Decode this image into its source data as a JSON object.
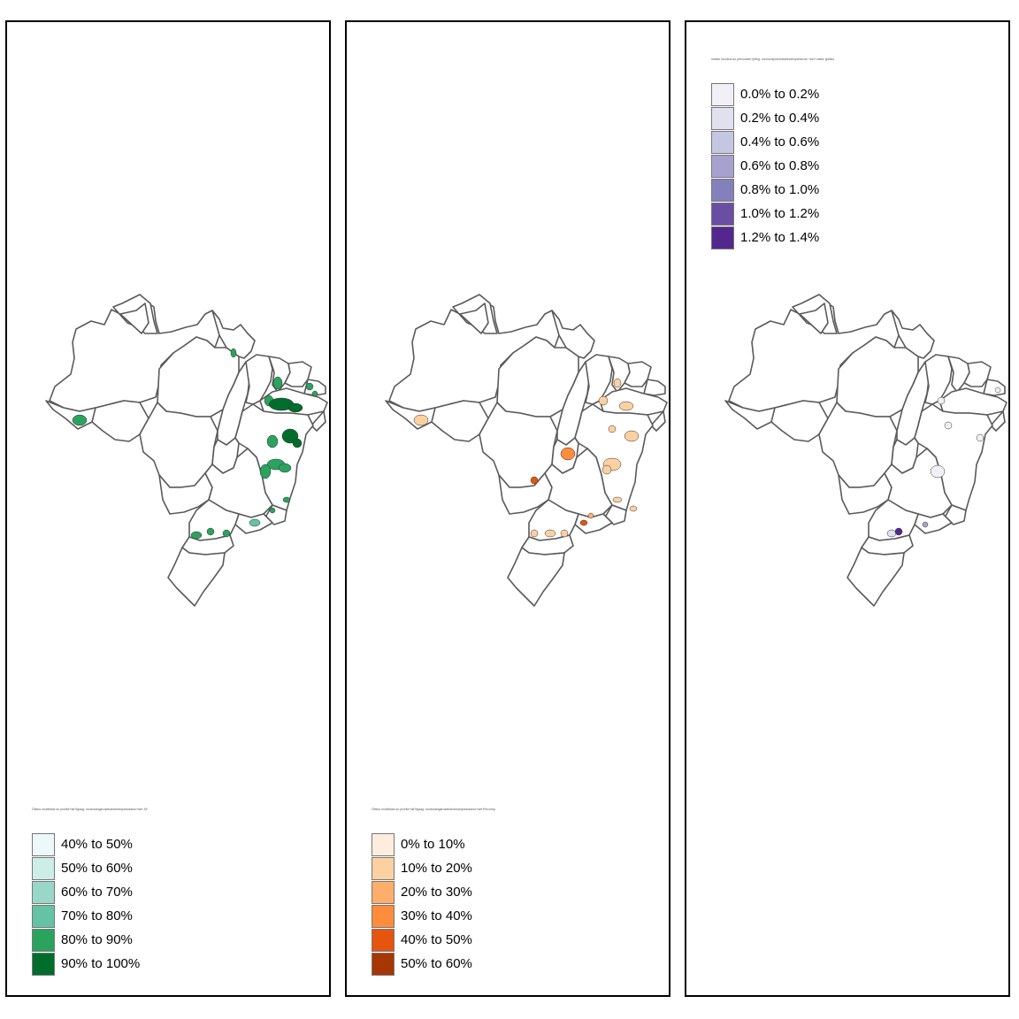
{
  "panels": [
    {
      "legend_title": "Óbitos mortfetais do pixelbr+lat?fgaag. mortosbrigarosebahderastpresclaros+lat+ AF",
      "legend": [
        {
          "label": "40% to 50%",
          "color": "#edf8fb"
        },
        {
          "label": "50% to 60%",
          "color": "#cceee6"
        },
        {
          "label": "60% to 70%",
          "color": "#99d8c9"
        },
        {
          "label": "70% to 80%",
          "color": "#66c2a4"
        },
        {
          "label": "80% to 90%",
          "color": "#2ca25f"
        },
        {
          "label": "90% to 100%",
          "color": "#006d2c"
        }
      ]
    },
    {
      "legend_title": "Óbitos mortfetais do pixelbr+lat?fgaag. mortosbrigarosebahderastpresclaros+lat+Precomp",
      "legend": [
        {
          "label": "0% to 10%",
          "color": "#feedde"
        },
        {
          "label": "10% to 20%",
          "color": "#fdd0a2"
        },
        {
          "label": "20% to 30%",
          "color": "#fdae6b"
        },
        {
          "label": "30% to 40%",
          "color": "#fd8d3c"
        },
        {
          "label": "40% to 50%",
          "color": "#e6550d"
        },
        {
          "label": "50% to 60%",
          "color": "#a63603"
        }
      ]
    },
    {
      "legend_title": "mattar ricrobus do percurarbr+pfing. ruroscoepuicfutseductesprescros+ dev+cattor grafico",
      "legend": [
        {
          "label": "0.0% to 0.2%",
          "color": "#f2f0f7"
        },
        {
          "label": "0.2% to 0.4%",
          "color": "#e1e0ee"
        },
        {
          "label": "0.4% to 0.6%",
          "color": "#c5c6e2"
        },
        {
          "label": "0.6% to 0.8%",
          "color": "#a6a2cd"
        },
        {
          "label": "0.8% to 1.0%",
          "color": "#8480bc"
        },
        {
          "label": "1.0% to 1.2%",
          "color": "#6a4ea3"
        },
        {
          "label": "1.2% to 1.4%",
          "color": "#54278f"
        }
      ]
    }
  ]
}
